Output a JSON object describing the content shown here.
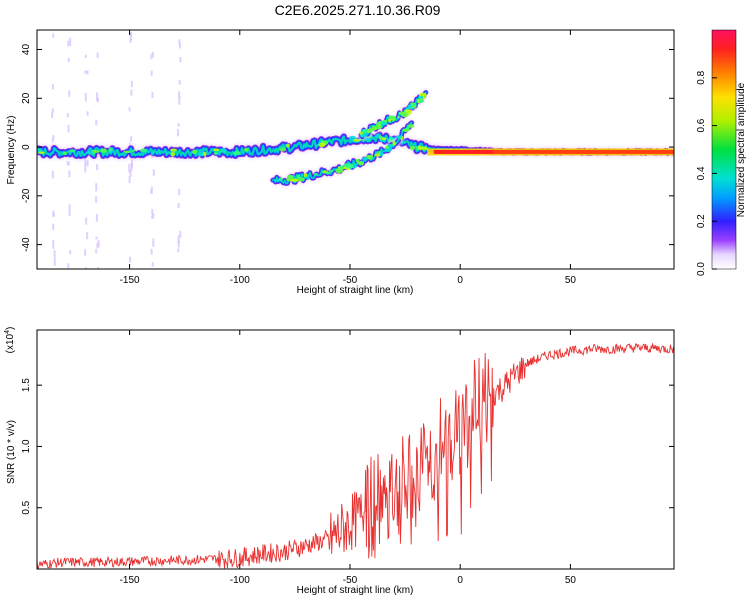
{
  "title": "C2E6.2025.271.10.36.R09",
  "chart_data": [
    {
      "type": "heatmap",
      "title": "C2E6.2025.271.10.36.R09",
      "xlabel": "Height of straight line (km)",
      "ylabel": "Frequency (Hz)",
      "xlim": [
        -192,
        97
      ],
      "ylim": [
        -50,
        48
      ],
      "xticks": [
        -150,
        -100,
        -50,
        0,
        50
      ],
      "yticks": [
        -40,
        -20,
        0,
        20,
        40
      ],
      "colorbar": {
        "label": "Normalized spectral amplitude",
        "range": [
          0,
          1
        ],
        "ticks": [
          0.0,
          0.2,
          0.4,
          0.6,
          0.8
        ],
        "tick_labels": [
          "0.0",
          "0.2",
          "0.4",
          "0.6",
          "0.8"
        ]
      },
      "traces": [
        {
          "name": "main band",
          "x": [
            -192,
            -150,
            -100,
            -75,
            -60,
            -50,
            -40,
            -30,
            -20,
            -10,
            0,
            20,
            50,
            97
          ],
          "y": [
            -2,
            -2,
            -2,
            0,
            2,
            3,
            4,
            3,
            0,
            -1,
            -1,
            -2,
            -2,
            -2
          ]
        },
        {
          "name": "upper branch",
          "x": [
            -45,
            -40,
            -35,
            -30,
            -25,
            -20,
            -15
          ],
          "y": [
            5,
            8,
            10,
            12,
            14,
            18,
            22
          ]
        },
        {
          "name": "lower branch",
          "x": [
            -85,
            -75,
            -65,
            -55,
            -45,
            -35,
            -28,
            -22
          ],
          "y": [
            -14,
            -13,
            -11,
            -9,
            -6,
            -2,
            3,
            10
          ]
        }
      ]
    },
    {
      "type": "line",
      "xlabel": "Height of straight line (km)",
      "ylabel": "SNR (10 * v/v)",
      "multiplier": "(x10",
      "multiplier_exp": "4",
      "multiplier_close": ")",
      "xlim": [
        -192,
        97
      ],
      "ylim": [
        0,
        1.95
      ],
      "xticks": [
        -150,
        -100,
        -50,
        0,
        50
      ],
      "yticks": [
        0.5,
        1.0,
        1.5
      ],
      "ytick_labels": [
        "0.5",
        "1.0",
        "1.5"
      ],
      "series": [
        {
          "name": "SNR",
          "color": "#e83030",
          "x": [
            -192,
            -180,
            -160,
            -140,
            -120,
            -100,
            -90,
            -80,
            -70,
            -60,
            -55,
            -50,
            -45,
            -40,
            -35,
            -30,
            -25,
            -20,
            -15,
            -10,
            -5,
            0,
            5,
            10,
            15,
            20,
            25,
            30,
            40,
            50,
            60,
            70,
            80,
            97
          ],
          "y": [
            0.04,
            0.06,
            0.06,
            0.07,
            0.08,
            0.1,
            0.13,
            0.15,
            0.2,
            0.25,
            0.32,
            0.4,
            0.45,
            0.55,
            0.6,
            0.65,
            0.7,
            0.8,
            0.9,
            1.0,
            1.1,
            1.2,
            1.3,
            1.4,
            1.45,
            1.5,
            1.6,
            1.68,
            1.75,
            1.78,
            1.8,
            1.8,
            1.81,
            1.8
          ]
        }
      ]
    }
  ]
}
